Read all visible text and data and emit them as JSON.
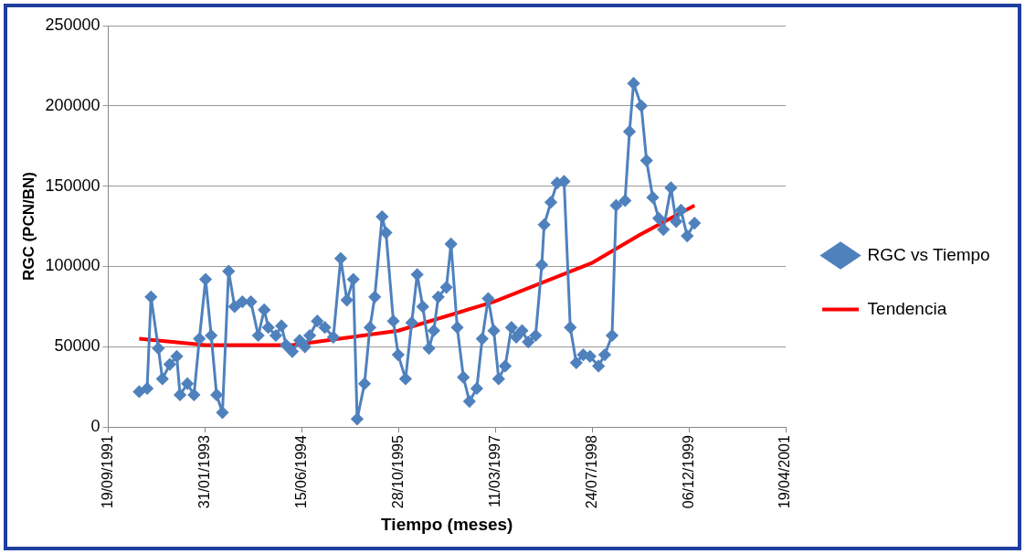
{
  "chart_data": {
    "type": "line",
    "xlabel": "Tiempo (meses)",
    "ylabel": "RGC (PCN/BN)",
    "xlim": [
      "1991-09-19",
      "2001-04-19"
    ],
    "xticks": [
      {
        "value": "1991-09-19",
        "label": "19/09/1991"
      },
      {
        "value": "1993-01-31",
        "label": "31/01/1993"
      },
      {
        "value": "1994-06-15",
        "label": "15/06/1994"
      },
      {
        "value": "1995-10-28",
        "label": "28/10/1995"
      },
      {
        "value": "1997-03-11",
        "label": "11/03/1997"
      },
      {
        "value": "1998-07-24",
        "label": "24/07/1998"
      },
      {
        "value": "1999-12-06",
        "label": "06/12/1999"
      },
      {
        "value": "2001-04-19",
        "label": "19/04/2001"
      }
    ],
    "ylim": [
      0,
      250000
    ],
    "yticks": [
      0,
      50000,
      100000,
      150000,
      200000,
      250000
    ],
    "grid": "y",
    "legend": "right",
    "series": [
      {
        "name": "RGC vs Tiempo",
        "color": "#4f81bd",
        "marker": "diamond",
        "line_style": "solid",
        "x": [
          "1992-02-26",
          "1992-04-07",
          "1992-04-27",
          "1992-06-04",
          "1992-06-25",
          "1992-08-02",
          "1992-09-07",
          "1992-09-24",
          "1992-11-01",
          "1992-12-05",
          "1993-01-02",
          "1993-02-03",
          "1993-03-04",
          "1993-04-01",
          "1993-05-01",
          "1993-06-02",
          "1993-07-03",
          "1993-08-12",
          "1993-09-25",
          "1993-11-02",
          "1993-12-03",
          "1993-12-24",
          "1994-02-01",
          "1994-03-02",
          "1994-03-26",
          "1994-04-27",
          "1994-06-04",
          "1994-07-01",
          "1994-07-26",
          "1994-09-03",
          "1994-10-12",
          "1994-11-25",
          "1995-01-02",
          "1995-02-03",
          "1995-03-08",
          "1995-03-28",
          "1995-05-05",
          "1995-06-02",
          "1995-06-27",
          "1995-08-04",
          "1995-08-24",
          "1995-10-01",
          "1995-10-26",
          "1995-12-03",
          "1996-01-04",
          "1996-02-01",
          "1996-03-01",
          "1996-04-02",
          "1996-04-27",
          "1996-05-20",
          "1996-07-01",
          "1996-07-25",
          "1996-08-26",
          "1996-09-27",
          "1996-10-28",
          "1996-12-05",
          "1997-01-02",
          "1997-02-02",
          "1997-03-03",
          "1997-03-28",
          "1997-05-01",
          "1997-06-02",
          "1997-06-27",
          "1997-07-27",
          "1997-08-28",
          "1997-10-05",
          "1997-11-06",
          "1997-11-18",
          "1997-12-23",
          "1998-01-24",
          "1998-03-01",
          "1998-04-02",
          "1998-05-03",
          "1998-06-08",
          "1998-07-13",
          "1998-08-26",
          "1998-09-27",
          "1998-11-04",
          "1998-11-25",
          "1999-01-10",
          "1999-02-02",
          "1999-02-23",
          "1999-04-04",
          "1999-05-01",
          "1999-06-02",
          "1999-07-03",
          "1999-07-27",
          "1999-09-04",
          "1999-10-01",
          "1999-10-26",
          "1999-11-27",
          "2000-01-04"
        ],
        "values": [
          22000,
          24000,
          81000,
          49000,
          30000,
          39000,
          44000,
          20000,
          27000,
          20000,
          55000,
          92000,
          57000,
          20000,
          9000,
          97000,
          75000,
          78000,
          78000,
          57000,
          73000,
          62000,
          57000,
          63000,
          51000,
          47000,
          54000,
          50000,
          57000,
          66000,
          62000,
          56000,
          105000,
          79000,
          92000,
          5000,
          27000,
          62000,
          81000,
          131000,
          121000,
          66000,
          45000,
          30000,
          65000,
          95000,
          75000,
          49000,
          60000,
          81000,
          87000,
          114000,
          62000,
          31000,
          16000,
          24000,
          55000,
          80000,
          60000,
          30000,
          38000,
          62000,
          56000,
          60000,
          53000,
          57000,
          101000,
          126000,
          140000,
          152000,
          153000,
          62000,
          40000,
          45000,
          44000,
          38000,
          45000,
          57000,
          138000,
          141000,
          184000,
          214000,
          200000,
          166000,
          143000,
          130000,
          123000,
          149000,
          128000,
          135000,
          119000,
          127000
        ]
      },
      {
        "name": "Tendencia",
        "color": "#ff0000",
        "marker": "none",
        "line_style": "solid",
        "x": [
          "1992-02-26",
          "1993-02-03",
          "1994-04-27",
          "1995-10-26",
          "1997-03-03",
          "1998-07-20",
          "1999-04-01",
          "2000-01-04"
        ],
        "values": [
          55000,
          51000,
          51000,
          60000,
          78000,
          102000,
          120000,
          138000
        ]
      }
    ]
  }
}
